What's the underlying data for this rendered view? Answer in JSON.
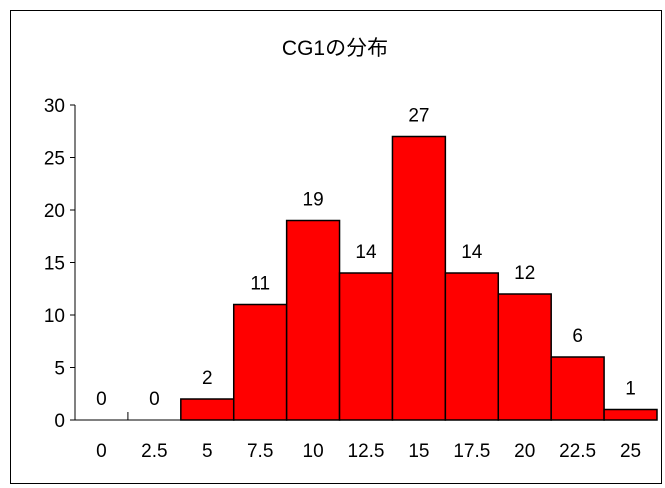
{
  "chart_data": {
    "type": "bar",
    "title": "CG1の分布",
    "xlabel": "",
    "ylabel": "",
    "categories": [
      "0",
      "2.5",
      "5",
      "7.5",
      "10",
      "12.5",
      "15",
      "17.5",
      "20",
      "22.5",
      "25"
    ],
    "values": [
      0,
      0,
      2,
      11,
      19,
      14,
      27,
      14,
      12,
      6,
      1
    ],
    "ylim": [
      0,
      30
    ],
    "yticks": [
      0,
      5,
      10,
      15,
      20,
      25,
      30
    ],
    "grid": false,
    "legend": "none",
    "bar_color": "#ff0000",
    "bar_edge_color": "#000000"
  }
}
